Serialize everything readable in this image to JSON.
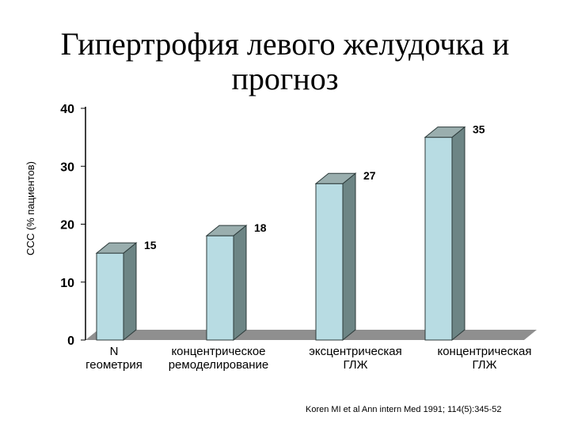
{
  "title_line1": "Гипертрофия левого желудочка и",
  "title_line2": "прогноз",
  "citation": "Koren MI et al Ann intern Med 1991; 114(5):345-52",
  "chart_data": {
    "type": "bar",
    "title": "Гипертрофия левого желудочка и прогноз",
    "ylabel": "ССС (% пациентов)",
    "xlabel": "",
    "ylim": [
      0,
      40
    ],
    "yticks": [
      0,
      10,
      20,
      30,
      40
    ],
    "categories": [
      [
        "N",
        "геометрия"
      ],
      [
        "концентрическое",
        "ремоделирование"
      ],
      [
        "эксцентрическая",
        "ГЛЖ"
      ],
      [
        "концентрическая",
        "ГЛЖ"
      ]
    ],
    "values": [
      15,
      18,
      27,
      35
    ],
    "data_labels": [
      "15",
      "18",
      "27",
      "35"
    ],
    "colors": {
      "bar_front": "#b8dce3",
      "bar_side": "#6d8585",
      "bar_top": "#9aaeae",
      "floor": "#8f8f8f",
      "axis": "#000000"
    },
    "grid": false,
    "legend": "none"
  }
}
